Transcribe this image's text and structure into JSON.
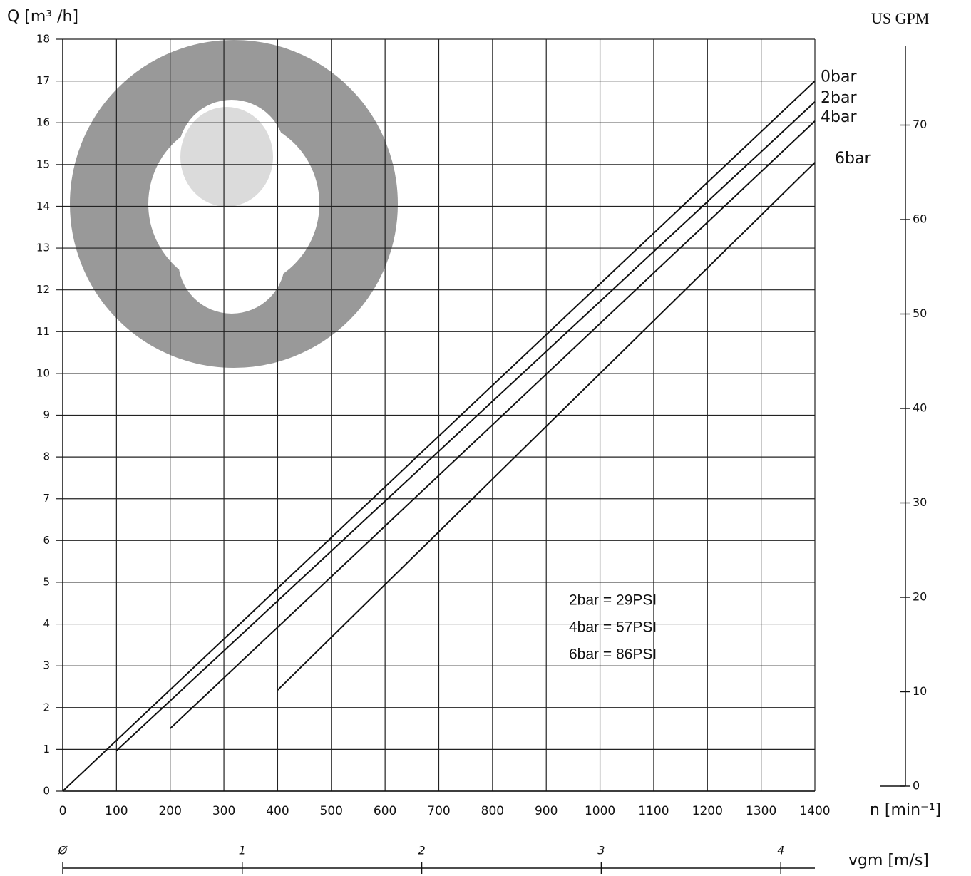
{
  "chart_data": {
    "type": "line",
    "ylabel": "Q [m³ /h]",
    "y2label": "US GPM",
    "xlabel": "n [min⁻¹]",
    "xlim": [
      0,
      1400
    ],
    "xticks": [
      0,
      100,
      200,
      300,
      400,
      500,
      600,
      700,
      800,
      900,
      1000,
      1100,
      1200,
      1300,
      1400
    ],
    "ylim": [
      0,
      18
    ],
    "yticks": [
      0,
      1,
      2,
      3,
      4,
      5,
      6,
      7,
      8,
      9,
      10,
      11,
      12,
      13,
      14,
      15,
      16,
      17,
      18
    ],
    "y2lim": [
      0,
      78
    ],
    "y2ticks": [
      0,
      10,
      20,
      30,
      40,
      50,
      60,
      70
    ],
    "grid": true,
    "series": [
      {
        "name": "0bar",
        "color": "#111111",
        "x": [
          0,
          1400
        ],
        "values": [
          0,
          17
        ]
      },
      {
        "name": "2bar",
        "color": "#111111",
        "x": [
          100,
          1400
        ],
        "values": [
          0.97,
          16.5
        ]
      },
      {
        "name": "4bar",
        "color": "#111111",
        "x": [
          200,
          1400
        ],
        "values": [
          1.5,
          16.04
        ]
      },
      {
        "name": "6bar",
        "color": "#111111",
        "x": [
          400,
          1400
        ],
        "values": [
          2.42,
          15.05
        ]
      }
    ],
    "annotations": [
      "2bar = 29PSI",
      "4bar = 57PSI",
      "6bar = 86PSI"
    ],
    "vgm_axis": {
      "label": "vgm [m/s]",
      "lim": [
        0,
        4.19
      ],
      "ticks": [
        {
          "value": 0,
          "label": "Ø"
        },
        1,
        2,
        3,
        4
      ]
    }
  }
}
